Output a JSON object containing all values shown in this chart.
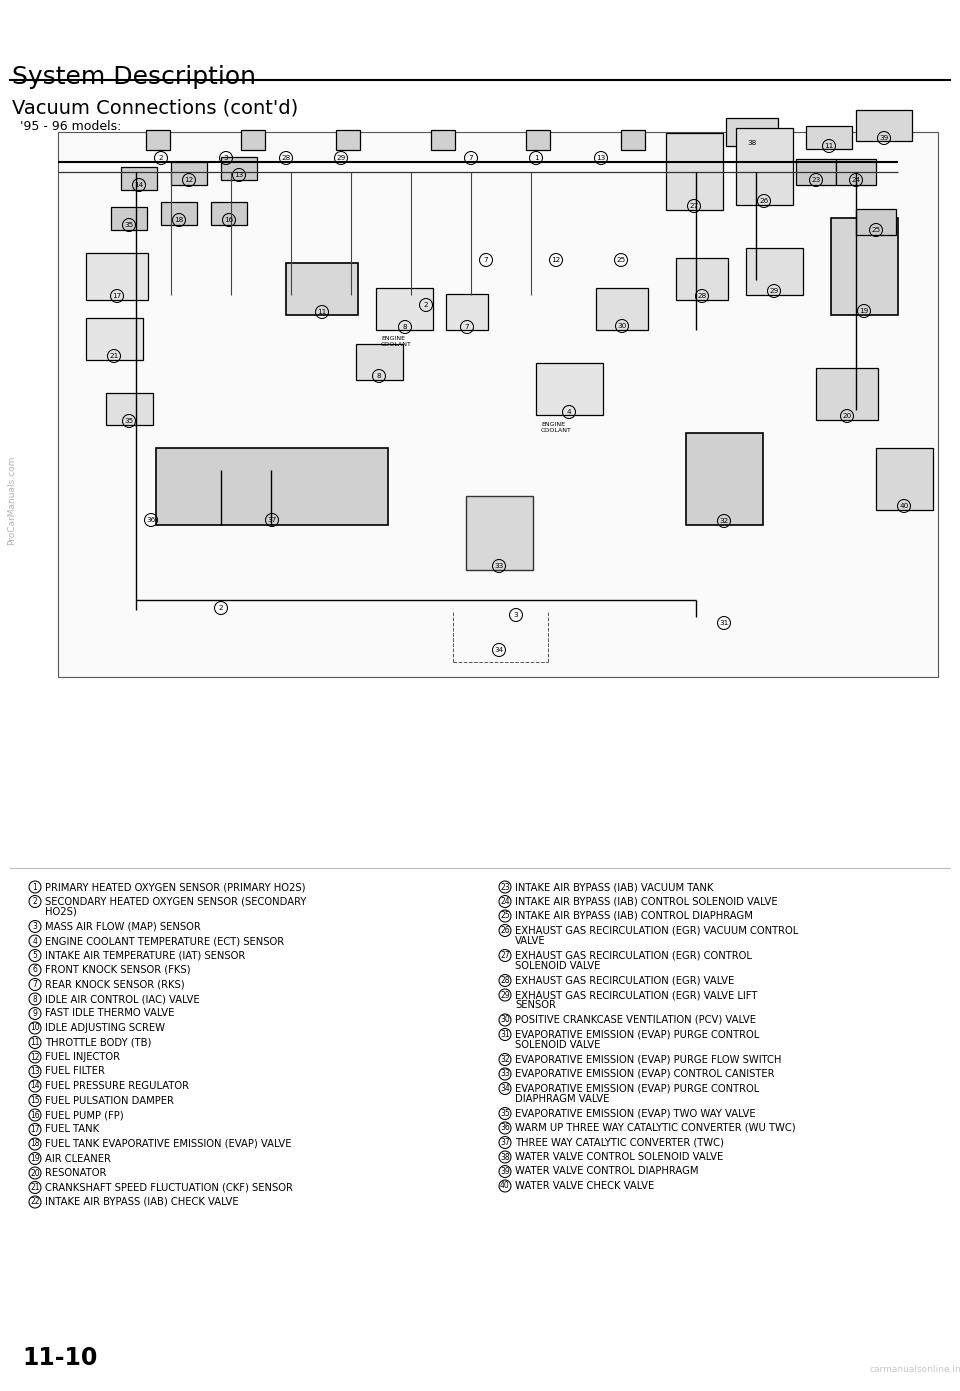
{
  "title": "System Description",
  "subtitle": "Vacuum Connections (cont'd)",
  "model_note": "'95 - 96 models:",
  "background_color": "#ffffff",
  "title_fontsize": 18,
  "subtitle_fontsize": 14,
  "legend_fontsize": 7.2,
  "page_number": "11-10",
  "watermark_left": "ProCarManuals.com",
  "watermark_right": "carmanualsonline.info",
  "left_items": [
    [
      "1",
      "PRIMARY HEATED OXYGEN SENSOR (PRIMARY HO2S)"
    ],
    [
      "2",
      "SECONDARY HEATED OXYGEN SENSOR (SECONDARY\n    HO2S)"
    ],
    [
      "3",
      "MASS AIR FLOW (MAP) SENSOR"
    ],
    [
      "4",
      "ENGINE COOLANT TEMPERATURE (ECT) SENSOR"
    ],
    [
      "5",
      "INTAKE AIR TEMPERATURE (IAT) SENSOR"
    ],
    [
      "6",
      "FRONT KNOCK SENSOR (FKS)"
    ],
    [
      "7",
      "REAR KNOCK SENSOR (RKS)"
    ],
    [
      "8",
      "IDLE AIR CONTROL (IAC) VALVE"
    ],
    [
      "9",
      "FAST IDLE THERMO VALVE"
    ],
    [
      "10",
      "IDLE ADJUSTING SCREW"
    ],
    [
      "11",
      "THROTTLE BODY (TB)"
    ],
    [
      "12",
      "FUEL INJECTOR"
    ],
    [
      "13",
      "FUEL FILTER"
    ],
    [
      "14",
      "FUEL PRESSURE REGULATOR"
    ],
    [
      "15",
      "FUEL PULSATION DAMPER"
    ],
    [
      "16",
      "FUEL PUMP (FP)"
    ],
    [
      "17",
      "FUEL TANK"
    ],
    [
      "18",
      "FUEL TANK EVAPORATIVE EMISSION (EVAP) VALVE"
    ],
    [
      "19",
      "AIR CLEANER"
    ],
    [
      "20",
      "RESONATOR"
    ],
    [
      "21",
      "CRANKSHAFT SPEED FLUCTUATION (CKF) SENSOR"
    ],
    [
      "22",
      "INTAKE AIR BYPASS (IAB) CHECK VALVE"
    ]
  ],
  "right_items": [
    [
      "23",
      "INTAKE AIR BYPASS (IAB) VACUUM TANK"
    ],
    [
      "24",
      "INTAKE AIR BYPASS (IAB) CONTROL SOLENOID VALVE"
    ],
    [
      "25",
      "INTAKE AIR BYPASS (IAB) CONTROL DIAPHRAGM"
    ],
    [
      "26",
      "EXHAUST GAS RECIRCULATION (EGR) VACUUM CONTROL\n      VALVE"
    ],
    [
      "27",
      "EXHAUST GAS RECIRCULATION (EGR) CONTROL\n      SOLENOID VALVE"
    ],
    [
      "28",
      "EXHAUST GAS RECIRCULATION (EGR) VALVE"
    ],
    [
      "29",
      "EXHAUST GAS RECIRCULATION (EGR) VALVE LIFT\n      SENSOR"
    ],
    [
      "30",
      "POSITIVE CRANKCASE VENTILATION (PCV) VALVE"
    ],
    [
      "31",
      "EVAPORATIVE EMISSION (EVAP) PURGE CONTROL\n      SOLENOID VALVE"
    ],
    [
      "32",
      "EVAPORATIVE EMISSION (EVAP) PURGE FLOW SWITCH"
    ],
    [
      "33",
      "EVAPORATIVE EMISSION (EVAP) CONTROL CANISTER"
    ],
    [
      "34",
      "EVAPORATIVE EMISSION (EVAP) PURGE CONTROL\n      DIAPHRAGM VALVE"
    ],
    [
      "35",
      "EVAPORATIVE EMISSION (EVAP) TWO WAY VALVE"
    ],
    [
      "36",
      "WARM UP THREE WAY CATALYTIC CONVERTER (WU TWC)"
    ],
    [
      "37",
      "THREE WAY CATALYTIC CONVERTER (TWC)"
    ],
    [
      "38",
      "WATER VALVE CONTROL SOLENOID VALVE"
    ],
    [
      "39",
      "WATER VALVE CONTROL DIAPHRAGM"
    ],
    [
      "40",
      "WATER VALVE CHECK VALVE"
    ]
  ]
}
